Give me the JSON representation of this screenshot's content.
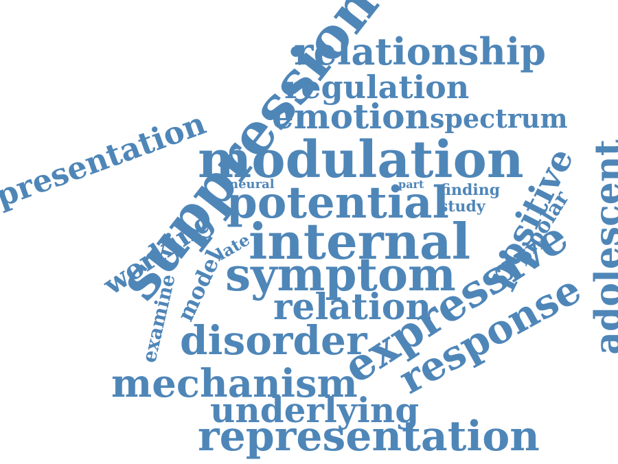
{
  "colors": {
    "word": "#4f86b8",
    "background": "#ffffff"
  },
  "words": {
    "suppression": "suppression",
    "relationship": "relationship",
    "regulation": "regulation",
    "emotion": "emotion",
    "spectrum": "spectrum",
    "presentation": "presentation",
    "modulation": "modulation",
    "adolescent": "adolescent",
    "neural": "neural",
    "part": "part",
    "finding": "finding",
    "study": "study",
    "potential": "potential",
    "positive": "positive",
    "bipolar": "bipolar",
    "working": "working",
    "late": "late",
    "internal": "internal",
    "model": "model",
    "symptom": "symptom",
    "expressive": "expressive",
    "response": "response",
    "examine": "examine",
    "relation": "relation",
    "disorder": "disorder",
    "mechanism": "mechanism",
    "underlying": "underlying",
    "representation": "representation"
  }
}
